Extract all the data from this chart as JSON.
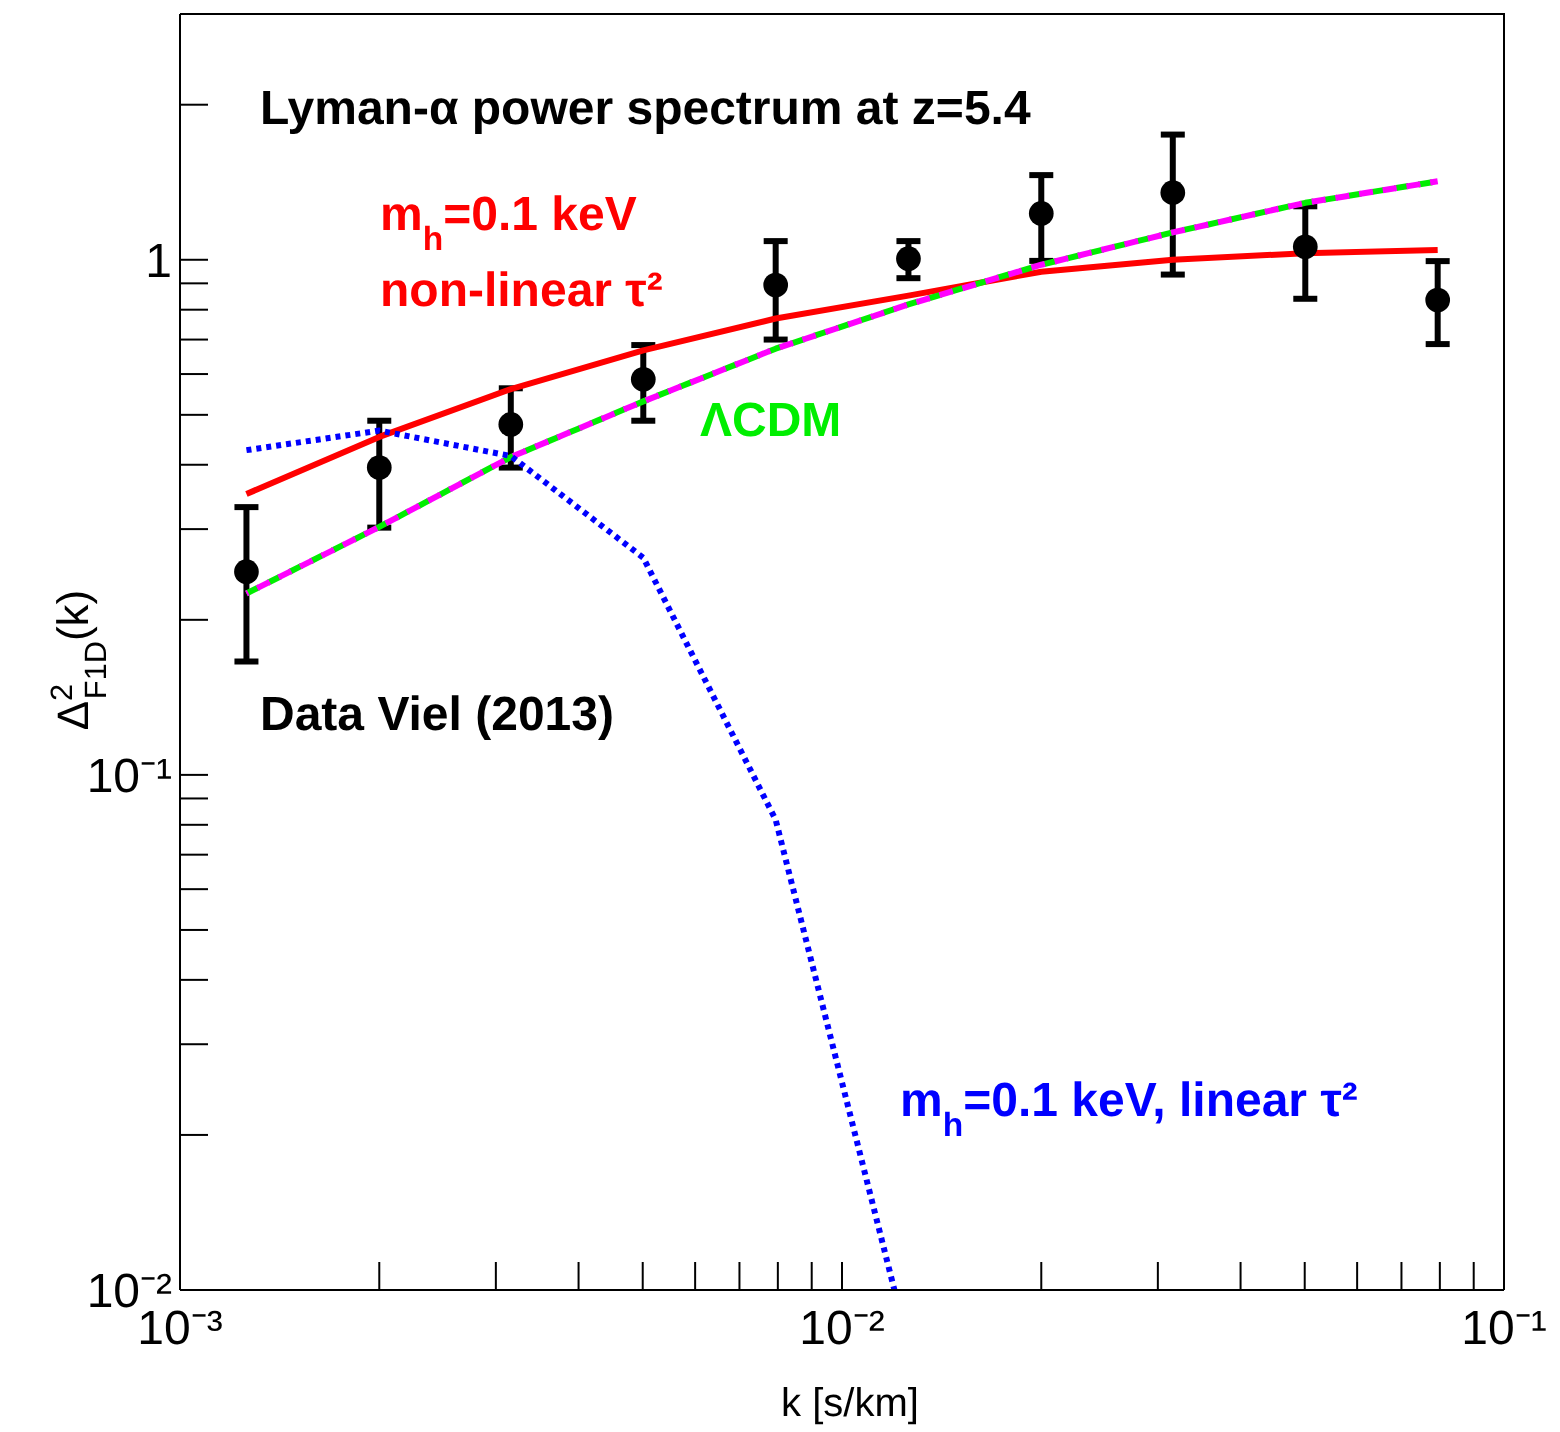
{
  "chart_data": {
    "type": "line",
    "title": "Lyman-α power spectrum at z=5.4",
    "xlabel": "k [s/km]",
    "ylabel": "Δ$^{2}$$_{F1D}$(k)",
    "log": "xy",
    "x": [
      0.00126,
      0.002,
      0.00316,
      0.00501,
      0.00794,
      0.0126,
      0.02,
      0.0316,
      0.0501,
      0.0794
    ],
    "series": [
      {
        "name": "Data Viel (2013)",
        "type": "scatter",
        "color": "#000000",
        "marker": "circle",
        "values": [
          0.248,
          0.395,
          0.479,
          0.586,
          0.893,
          1.005,
          1.23,
          1.35,
          1.06,
          0.835
        ],
        "errors": [
          [
            0.166,
            0.331
          ],
          [
            0.302,
            0.487
          ],
          [
            0.395,
            0.563
          ],
          [
            0.487,
            0.683
          ],
          [
            0.7,
            1.087
          ],
          [
            0.921,
            1.087
          ],
          [
            0.995,
            1.46
          ],
          [
            0.936,
            1.75
          ],
          [
            0.84,
            1.27
          ],
          [
            0.686,
            0.994
          ]
        ]
      },
      {
        "name": "m$_{h}$=0.1 keV\nnon-linear τ²",
        "type": "line",
        "color": "#ff0000",
        "line_style": "solid",
        "values": [
          0.351,
          0.453,
          0.561,
          0.667,
          0.769,
          0.852,
          0.948,
          1.0,
          1.03,
          1.045
        ]
      },
      {
        "name": "ΛCDM",
        "type": "line",
        "color": "#00ee00",
        "line_style": "dashed",
        "values": [
          0.225,
          0.303,
          0.414,
          0.531,
          0.672,
          0.819,
          0.978,
          1.13,
          1.29,
          1.42
        ]
      },
      {
        "type": "line",
        "color": "#ff00ff",
        "line_style": "dashed",
        "values": [
          0.225,
          0.303,
          0.414,
          0.531,
          0.672,
          0.819,
          0.978,
          1.13,
          1.29,
          1.42
        ]
      },
      {
        "name": "m$_{h}$=0.1 keV, linear τ²",
        "type": "line",
        "color": "#0000ff",
        "line_style": "dotted",
        "x": [
          0.00126,
          0.002,
          0.00316,
          0.00501,
          0.00794,
          0.012
        ],
        "values": [
          0.427,
          0.466,
          0.416,
          0.264,
          0.0818,
          0.01
        ]
      }
    ],
    "xlim": [
      0.001,
      0.1
    ],
    "xticks": [
      {
        "value": 0.001,
        "label": "10⁻³"
      },
      {
        "value": 0.002,
        "label": null
      },
      {
        "value": 0.003,
        "label": null
      },
      {
        "value": 0.004,
        "label": null
      },
      {
        "value": 0.005,
        "label": null
      },
      {
        "value": 0.006,
        "label": null
      },
      {
        "value": 0.007,
        "label": null
      },
      {
        "value": 0.008,
        "label": null
      },
      {
        "value": 0.009,
        "label": null
      },
      {
        "value": 0.01,
        "label": "10⁻²"
      },
      {
        "value": 0.02,
        "label": null
      },
      {
        "value": 0.03,
        "label": null
      },
      {
        "value": 0.04,
        "label": null
      },
      {
        "value": 0.05,
        "label": null
      },
      {
        "value": 0.06,
        "label": null
      },
      {
        "value": 0.07,
        "label": null
      },
      {
        "value": 0.08,
        "label": null
      },
      {
        "value": 0.09,
        "label": null
      },
      {
        "value": 0.1,
        "label": "10⁻¹"
      }
    ],
    "ylim": [
      0.01,
      3
    ],
    "yticks": [
      {
        "value": 0.01,
        "label": "10⁻²"
      },
      {
        "value": 0.02,
        "label": null
      },
      {
        "value": 0.03,
        "label": null
      },
      {
        "value": 0.04,
        "label": null
      },
      {
        "value": 0.05,
        "label": null
      },
      {
        "value": 0.06,
        "label": null
      },
      {
        "value": 0.07,
        "label": null
      },
      {
        "value": 0.08,
        "label": null
      },
      {
        "value": 0.09,
        "label": null
      },
      {
        "value": 0.1,
        "label": "10⁻¹"
      },
      {
        "value": 0.2,
        "label": null
      },
      {
        "value": 0.3,
        "label": null
      },
      {
        "value": 0.4,
        "label": null
      },
      {
        "value": 0.5,
        "label": null
      },
      {
        "value": 0.6,
        "label": null
      },
      {
        "value": 0.7,
        "label": null
      },
      {
        "value": 0.8,
        "label": null
      },
      {
        "value": 0.9,
        "label": null
      },
      1,
      {
        "value": 2,
        "label": null
      }
    ]
  }
}
